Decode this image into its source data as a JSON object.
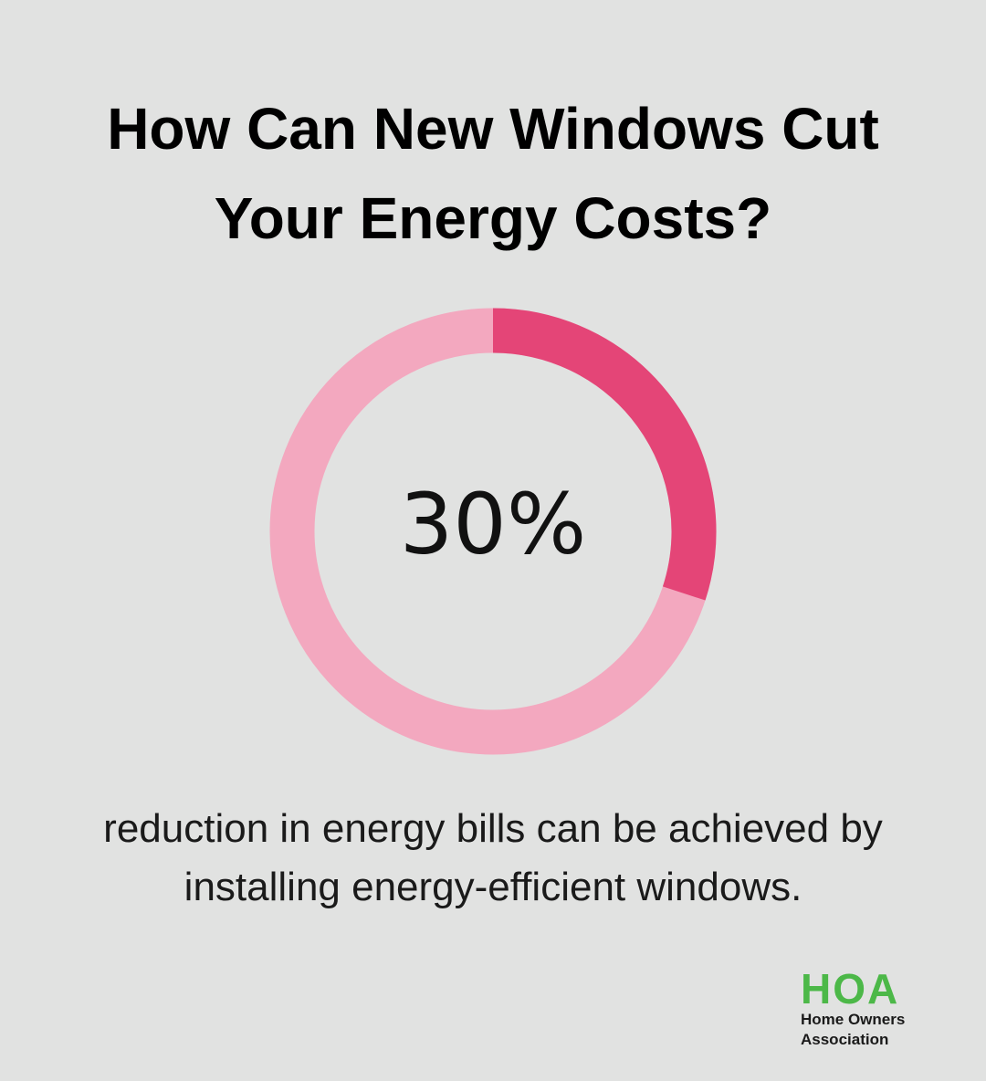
{
  "chart_data": {
    "type": "donut",
    "title": "How Can New Windows Cut Your Energy Costs?",
    "values": [
      30
    ],
    "value_labels": [
      "30%"
    ],
    "color": "#e44577",
    "track_color": "#f3a8bf",
    "caption": "reduction in energy bills can be achieved by installing energy-efficient windows."
  },
  "logo": {
    "mark": "HOA",
    "line1": "Home Owners",
    "line2": "Association"
  }
}
